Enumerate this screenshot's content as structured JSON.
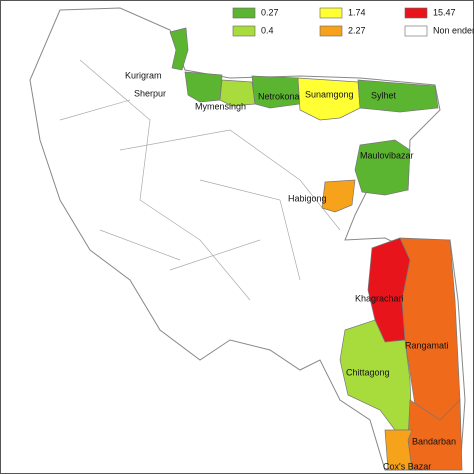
{
  "legend": [
    {
      "label": "0.27",
      "color": "#5cb531"
    },
    {
      "label": "1.74",
      "color": "#ffff33"
    },
    {
      "label": "15.47",
      "color": "#e8141b"
    },
    {
      "label": "0.4",
      "color": "#a8dc3c"
    },
    {
      "label": "2.27",
      "color": "#f7a21b"
    },
    {
      "label": "Non endemic",
      "color": "#ffffff"
    }
  ],
  "districts": [
    {
      "name": "Kurigram",
      "color": "#5cb531"
    },
    {
      "name": "Sherpur",
      "color": "#5cb531"
    },
    {
      "name": "Mymensingh",
      "color": "#a8dc3c"
    },
    {
      "name": "Netrokona",
      "color": "#5cb531"
    },
    {
      "name": "Sunamgong",
      "color": "#ffff33"
    },
    {
      "name": "Sylhet",
      "color": "#5cb531"
    },
    {
      "name": "Maulovibazar",
      "color": "#5cb531"
    },
    {
      "name": "Habigong",
      "color": "#f7a21b"
    },
    {
      "name": "Khagrachari",
      "color": "#e8141b"
    },
    {
      "name": "Rangamati",
      "color": "#f06a1c"
    },
    {
      "name": "Chittagong",
      "color": "#a8dc3c"
    },
    {
      "name": "Bandarban",
      "color": "#f06a1c"
    },
    {
      "name": "Cox's Bazar",
      "color": "#f7a21b"
    }
  ]
}
